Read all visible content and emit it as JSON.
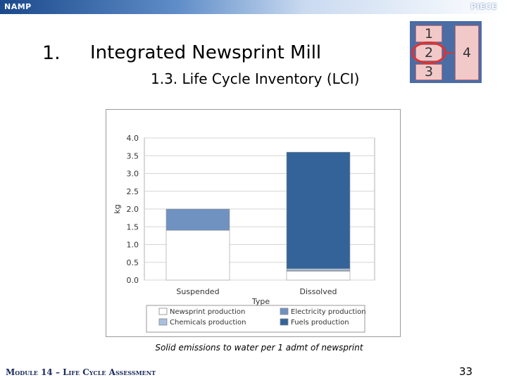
{
  "header": {
    "left": "NAMP",
    "right": "PIECE"
  },
  "slide": {
    "number": "1.",
    "title": "Integrated Newsprint Mill",
    "subtitle": "1.3. Life Cycle Inventory (LCI)"
  },
  "nav": {
    "cells": [
      "1",
      "2",
      "3",
      "4"
    ],
    "highlighted": "2"
  },
  "chart_data": {
    "type": "bar",
    "stacked": true,
    "xlabel": "Type",
    "ylabel": "kg",
    "ylim": [
      0,
      4.0
    ],
    "yticks": [
      "0.0",
      "0.5",
      "1.0",
      "1.5",
      "2.0",
      "2.5",
      "3.0",
      "3.5",
      "4.0"
    ],
    "grid": true,
    "legend_position": "bottom",
    "categories": [
      "Suspended",
      "Dissolved"
    ],
    "series": [
      {
        "name": "Newsprint production",
        "color": "#ffffff",
        "values": [
          1.4,
          0.25
        ]
      },
      {
        "name": "Electricity production",
        "color": "#6f92c0",
        "values": [
          0.6,
          0.02
        ]
      },
      {
        "name": "Chemicals production",
        "color": "#a8c0de",
        "values": [
          0.0,
          0.05
        ]
      },
      {
        "name": "Fuels production",
        "color": "#336398",
        "values": [
          0.0,
          3.28
        ]
      }
    ]
  },
  "caption": "Solid emissions to water per 1 admt of newsprint",
  "footer": "Module 14 – Life Cycle Assessment",
  "page_number": "33"
}
